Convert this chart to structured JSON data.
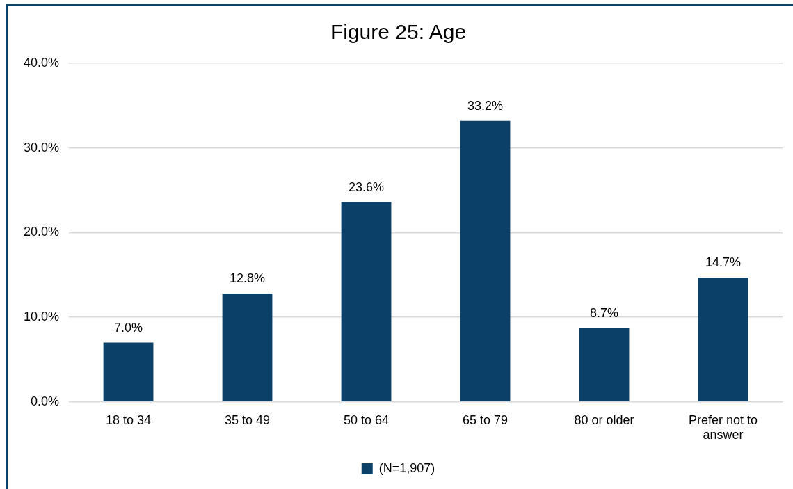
{
  "chart_data": {
    "type": "bar",
    "title": "Figure 25: Age",
    "categories": [
      "18 to 34",
      "35 to 49",
      "50 to 64",
      "65 to 79",
      "80 or older",
      "Prefer not to answer"
    ],
    "series": [
      {
        "name": "(N=1,907)",
        "color": "#0b4168",
        "values": [
          7.0,
          12.8,
          23.6,
          33.2,
          8.7,
          14.7
        ],
        "value_labels": [
          "7.0%",
          "12.8%",
          "23.6%",
          "33.2%",
          "8.7%",
          "14.7%"
        ]
      }
    ],
    "ylim": [
      0,
      40
    ],
    "yticks": [
      {
        "value": 0,
        "label": "0.0%"
      },
      {
        "value": 10,
        "label": "10.0%"
      },
      {
        "value": 20,
        "label": "20.0%"
      },
      {
        "value": 30,
        "label": "30.0%"
      },
      {
        "value": 40,
        "label": "40.0%"
      }
    ],
    "grid": "y",
    "legend": "bottom"
  }
}
